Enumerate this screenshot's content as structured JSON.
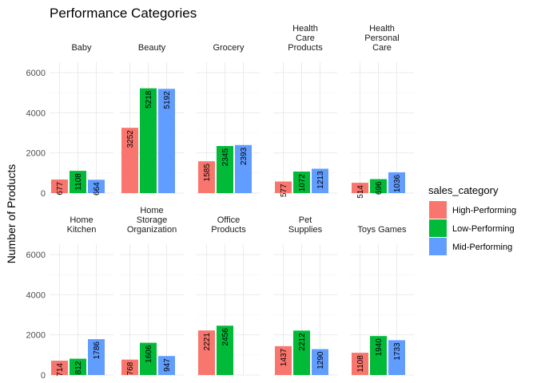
{
  "chart_data": {
    "type": "bar",
    "title": "Performance Categories",
    "xlabel": "",
    "ylabel": "Number of Products",
    "ylim": [
      0,
      6500
    ],
    "yticks": [
      0,
      2000,
      4000,
      6000
    ],
    "grid": true,
    "legend": {
      "title": "sales_category",
      "position": "right",
      "entries": [
        "High-Performing",
        "Low-Performing",
        "Mid-Performing"
      ]
    },
    "colors": {
      "High-Performing": "#F8766D",
      "Low-Performing": "#00BA38",
      "Mid-Performing": "#619CFF"
    },
    "facets": [
      {
        "label": [
          "Baby"
        ],
        "values": {
          "High-Performing": 677,
          "Low-Performing": 1108,
          "Mid-Performing": 664
        }
      },
      {
        "label": [
          "Beauty"
        ],
        "values": {
          "High-Performing": 3252,
          "Low-Performing": 5218,
          "Mid-Performing": 5192
        }
      },
      {
        "label": [
          "Grocery"
        ],
        "values": {
          "High-Performing": 1585,
          "Low-Performing": 2345,
          "Mid-Performing": 2393
        }
      },
      {
        "label": [
          "Health",
          "Care",
          "Products"
        ],
        "values": {
          "High-Performing": 577,
          "Low-Performing": 1072,
          "Mid-Performing": 1213
        }
      },
      {
        "label": [
          "Health",
          "Personal",
          "Care"
        ],
        "values": {
          "High-Performing": 514,
          "Low-Performing": 696,
          "Mid-Performing": 1036
        }
      },
      {
        "label": [
          "Home",
          "Kitchen"
        ],
        "values": {
          "High-Performing": 714,
          "Low-Performing": 812,
          "Mid-Performing": 1786
        }
      },
      {
        "label": [
          "Home",
          "Storage",
          "Organization"
        ],
        "values": {
          "High-Performing": 768,
          "Low-Performing": 1606,
          "Mid-Performing": 947
        }
      },
      {
        "label": [
          "Office",
          "Products"
        ],
        "values": {
          "High-Performing": 2221,
          "Low-Performing": 2456
        }
      },
      {
        "label": [
          "Pet",
          "Supplies"
        ],
        "values": {
          "High-Performing": 1437,
          "Low-Performing": 2212,
          "Mid-Performing": 1290
        }
      },
      {
        "label": [
          "Toys Games"
        ],
        "values": {
          "High-Performing": 1108,
          "Low-Performing": 1940,
          "Mid-Performing": 1733
        }
      }
    ]
  }
}
